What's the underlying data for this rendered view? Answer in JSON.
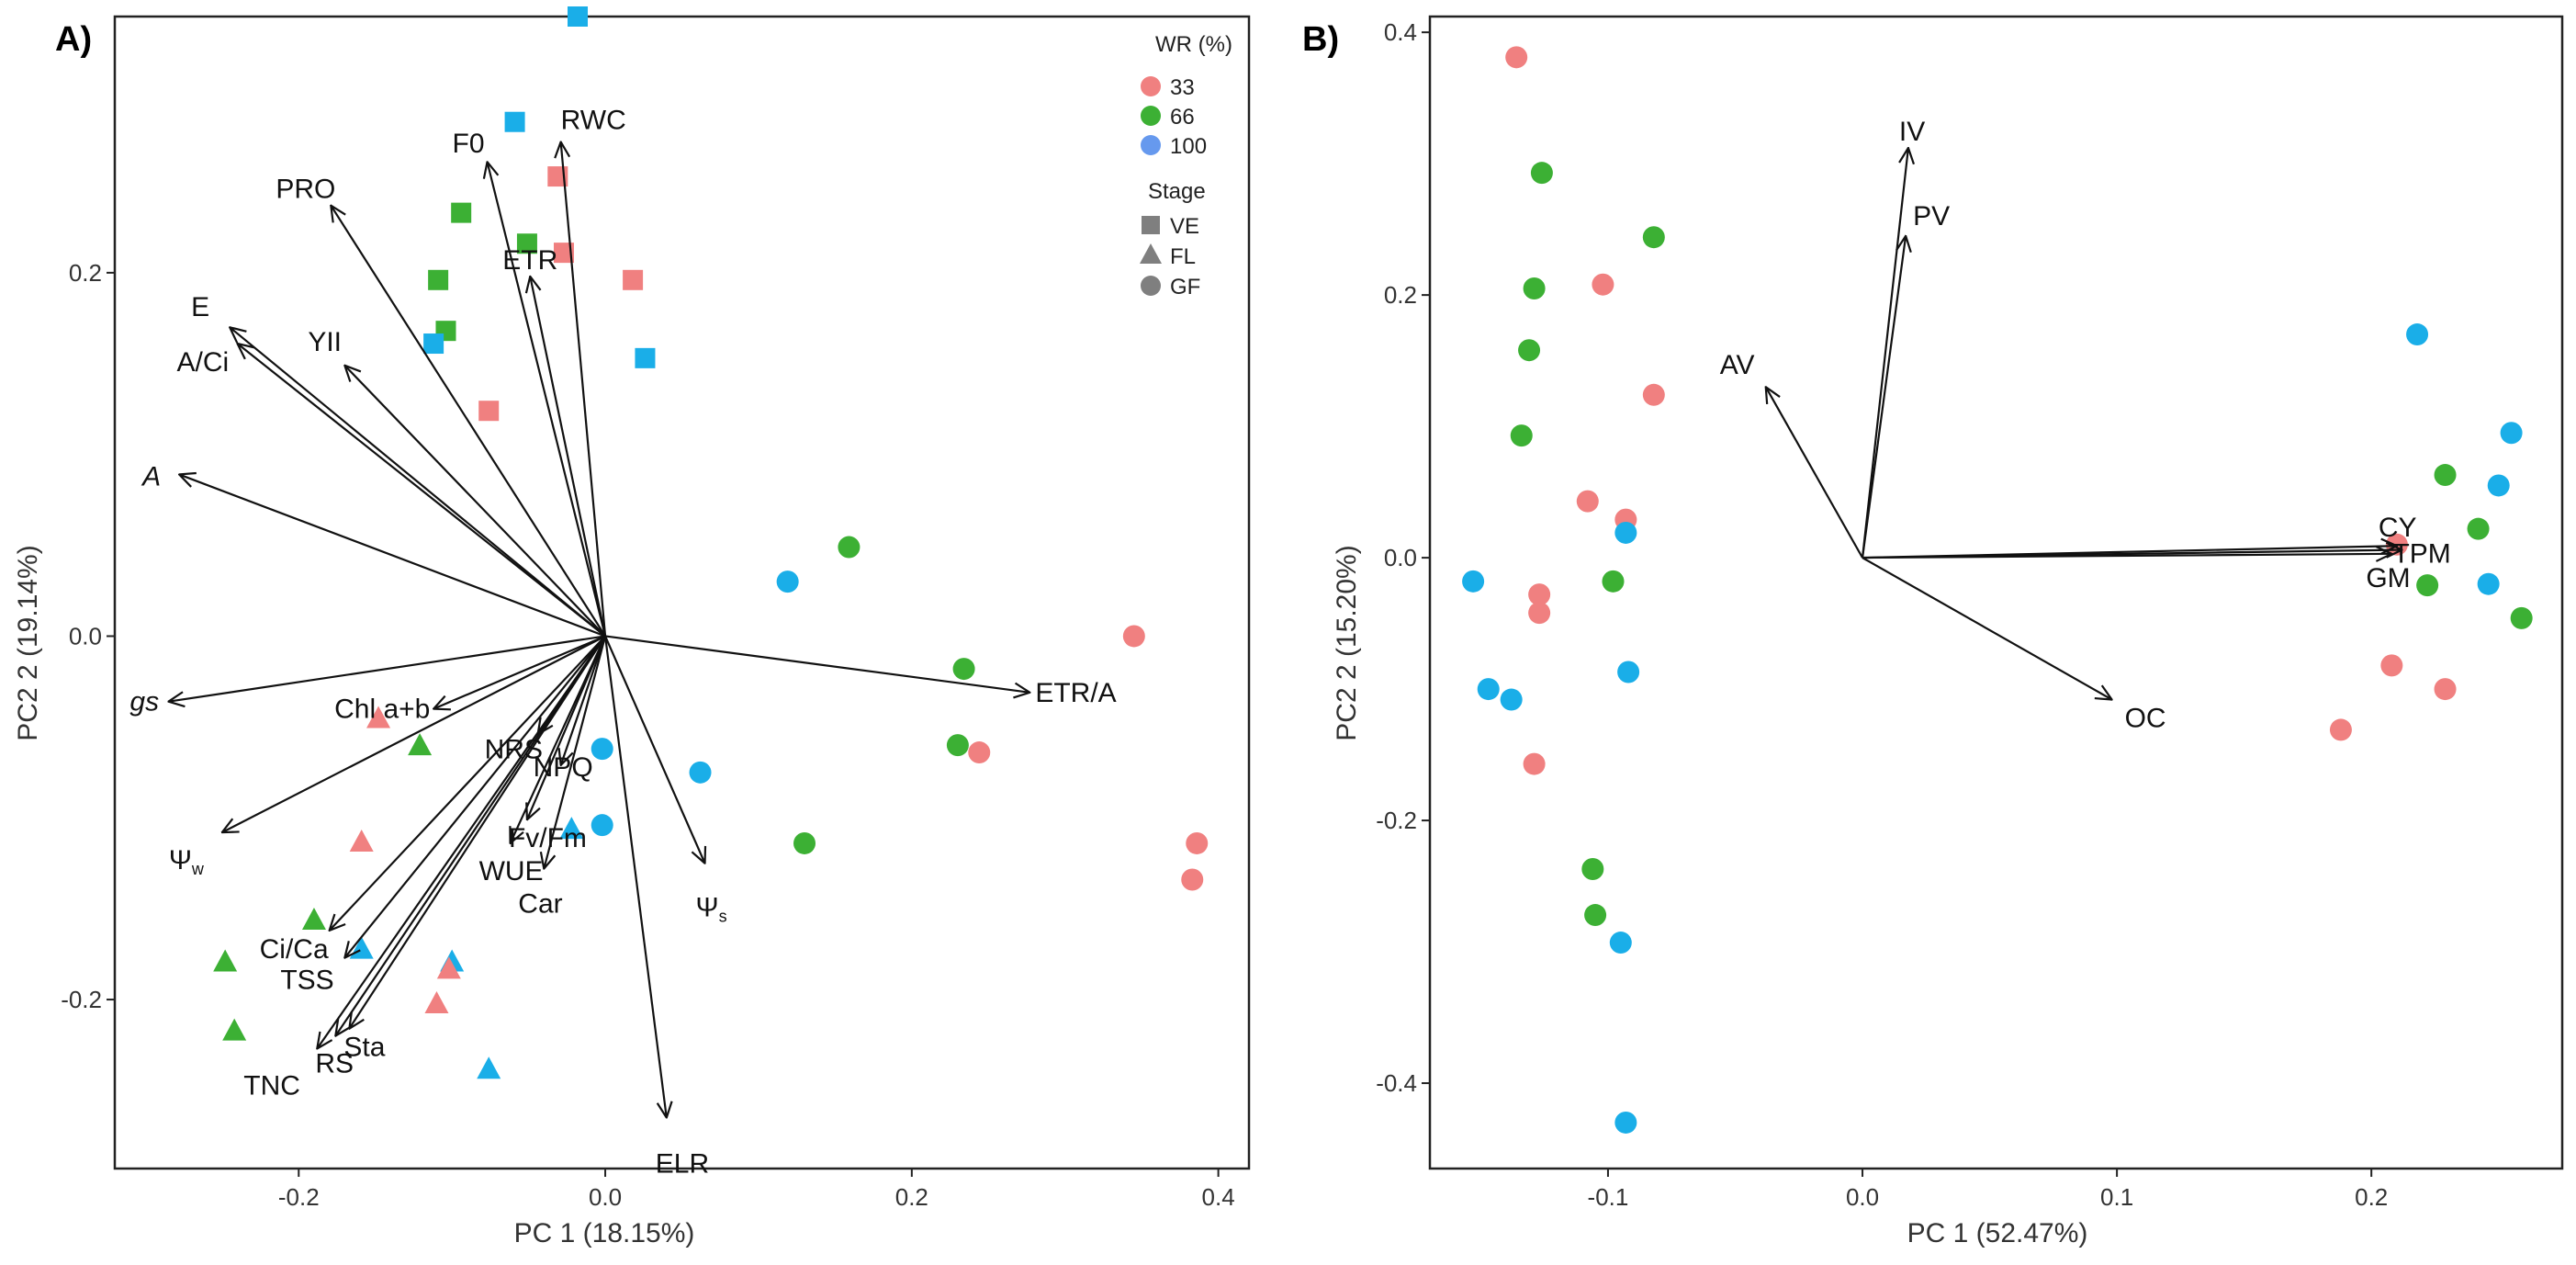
{
  "colors": {
    "wr33": "#f08080",
    "wr66": "#3cb034",
    "wr100": "#1aaee8",
    "legend100": "#6699ee",
    "stage": "#7f7f7f"
  },
  "legend": {
    "wr_title": "WR (%)",
    "wr_items": [
      {
        "label": "33",
        "key": "33"
      },
      {
        "label": "66",
        "key": "66"
      },
      {
        "label": "100",
        "key": "100"
      }
    ],
    "stage_title": "Stage",
    "stage_items": [
      {
        "label": "VE",
        "key": "VE"
      },
      {
        "label": "FL",
        "key": "FL"
      },
      {
        "label": "GF",
        "key": "GF"
      }
    ]
  },
  "chart_data": [
    {
      "panel": "A)",
      "type": "scatter",
      "xlabel": "PC 1 (18.15%)",
      "ylabel": "PC2 2 (19.14%)",
      "xlim": [
        -0.32,
        0.42
      ],
      "ylim": [
        -0.293,
        0.341
      ],
      "xticks": [
        -0.2,
        0.0,
        0.2,
        0.4
      ],
      "xtick_labels": [
        "-0.2",
        "0.0",
        "0.2",
        "0.4"
      ],
      "yticks": [
        -0.2,
        0.0,
        0.2
      ],
      "ytick_labels": [
        "-0.2",
        "0.0",
        "0.2"
      ],
      "loadings": [
        {
          "label": "RWC",
          "x": -0.029,
          "y": 0.272
        },
        {
          "label": "F0",
          "x": -0.077,
          "y": 0.261
        },
        {
          "label": "PRO",
          "x": -0.179,
          "y": 0.237
        },
        {
          "label": "ETR",
          "x": -0.049,
          "y": 0.198
        },
        {
          "label": "YII",
          "x": -0.17,
          "y": 0.149
        },
        {
          "label": "E",
          "x": -0.245,
          "y": 0.17
        },
        {
          "label": "A/Ci",
          "x": -0.24,
          "y": 0.161
        },
        {
          "label": "A",
          "x": -0.278,
          "y": 0.089
        },
        {
          "label": "gs",
          "x": -0.285,
          "y": -0.036
        },
        {
          "label": "Chl a+b",
          "x": -0.112,
          "y": -0.04
        },
        {
          "label": "NRS",
          "x": -0.044,
          "y": -0.054
        },
        {
          "label": "NPQ",
          "x": -0.029,
          "y": -0.071
        },
        {
          "label": "Fv/Fm",
          "x": -0.051,
          "y": -0.101
        },
        {
          "label": "WUE",
          "x": -0.062,
          "y": -0.114
        },
        {
          "label": "Car",
          "x": -0.04,
          "y": -0.128
        },
        {
          "label": "Ψw",
          "x": -0.25,
          "y": -0.108
        },
        {
          "label": "Ci/Ca",
          "x": -0.18,
          "y": -0.162
        },
        {
          "label": "TSS",
          "x": -0.17,
          "y": -0.177
        },
        {
          "label": "TNC",
          "x": -0.188,
          "y": -0.227
        },
        {
          "label": "RS",
          "x": -0.176,
          "y": -0.22
        },
        {
          "label": "Sta",
          "x": -0.167,
          "y": -0.216
        },
        {
          "label": "Ψs",
          "x": 0.065,
          "y": -0.125
        },
        {
          "label": "ELR",
          "x": 0.04,
          "y": -0.265
        },
        {
          "label": "ETR/A",
          "x": 0.277,
          "y": -0.031
        }
      ],
      "points": [
        {
          "x": -0.018,
          "y": 0.341,
          "wr": "100",
          "stage": "VE"
        },
        {
          "x": -0.059,
          "y": 0.283,
          "wr": "100",
          "stage": "VE"
        },
        {
          "x": -0.031,
          "y": 0.253,
          "wr": "33",
          "stage": "VE"
        },
        {
          "x": -0.094,
          "y": 0.233,
          "wr": "66",
          "stage": "VE"
        },
        {
          "x": -0.051,
          "y": 0.216,
          "wr": "66",
          "stage": "VE"
        },
        {
          "x": -0.027,
          "y": 0.211,
          "wr": "33",
          "stage": "VE"
        },
        {
          "x": -0.109,
          "y": 0.196,
          "wr": "66",
          "stage": "VE"
        },
        {
          "x": 0.018,
          "y": 0.196,
          "wr": "33",
          "stage": "VE"
        },
        {
          "x": -0.104,
          "y": 0.168,
          "wr": "66",
          "stage": "VE"
        },
        {
          "x": -0.112,
          "y": 0.161,
          "wr": "100",
          "stage": "VE"
        },
        {
          "x": 0.026,
          "y": 0.153,
          "wr": "100",
          "stage": "VE"
        },
        {
          "x": -0.076,
          "y": 0.124,
          "wr": "33",
          "stage": "VE"
        },
        {
          "x": -0.148,
          "y": -0.045,
          "wr": "33",
          "stage": "FL"
        },
        {
          "x": -0.121,
          "y": -0.06,
          "wr": "66",
          "stage": "FL"
        },
        {
          "x": -0.159,
          "y": -0.113,
          "wr": "33",
          "stage": "FL"
        },
        {
          "x": -0.19,
          "y": -0.156,
          "wr": "66",
          "stage": "FL"
        },
        {
          "x": -0.159,
          "y": -0.172,
          "wr": "100",
          "stage": "FL"
        },
        {
          "x": -0.248,
          "y": -0.179,
          "wr": "66",
          "stage": "FL"
        },
        {
          "x": -0.1,
          "y": -0.179,
          "wr": "100",
          "stage": "FL"
        },
        {
          "x": -0.102,
          "y": -0.183,
          "wr": "33",
          "stage": "FL"
        },
        {
          "x": -0.11,
          "y": -0.202,
          "wr": "33",
          "stage": "FL"
        },
        {
          "x": -0.242,
          "y": -0.217,
          "wr": "66",
          "stage": "FL"
        },
        {
          "x": -0.076,
          "y": -0.238,
          "wr": "100",
          "stage": "FL"
        },
        {
          "x": -0.022,
          "y": -0.106,
          "wr": "100",
          "stage": "FL"
        },
        {
          "x": 0.159,
          "y": 0.049,
          "wr": "66",
          "stage": "GF"
        },
        {
          "x": 0.119,
          "y": 0.03,
          "wr": "100",
          "stage": "GF"
        },
        {
          "x": 0.345,
          "y": 0.0,
          "wr": "33",
          "stage": "GF"
        },
        {
          "x": 0.234,
          "y": -0.018,
          "wr": "66",
          "stage": "GF"
        },
        {
          "x": 0.23,
          "y": -0.06,
          "wr": "66",
          "stage": "GF"
        },
        {
          "x": 0.244,
          "y": -0.064,
          "wr": "33",
          "stage": "GF"
        },
        {
          "x": -0.002,
          "y": -0.062,
          "wr": "100",
          "stage": "GF"
        },
        {
          "x": 0.062,
          "y": -0.075,
          "wr": "100",
          "stage": "GF"
        },
        {
          "x": -0.002,
          "y": -0.104,
          "wr": "100",
          "stage": "GF"
        },
        {
          "x": 0.13,
          "y": -0.114,
          "wr": "66",
          "stage": "GF"
        },
        {
          "x": 0.386,
          "y": -0.114,
          "wr": "33",
          "stage": "GF"
        },
        {
          "x": 0.383,
          "y": -0.134,
          "wr": "33",
          "stage": "GF"
        }
      ]
    },
    {
      "panel": "B)",
      "type": "scatter",
      "xlabel": "PC 1 (52.47%)",
      "ylabel": "PC2 2 (15.20%)",
      "xlim": [
        -0.17,
        0.275
      ],
      "ylim": [
        -0.465,
        0.412
      ],
      "xticks": [
        -0.1,
        0.0,
        0.1,
        0.2
      ],
      "xtick_labels": [
        "-0.1",
        "0.0",
        "0.1",
        "0.2"
      ],
      "yticks": [
        -0.4,
        -0.2,
        0.0,
        0.2,
        0.4
      ],
      "ytick_labels": [
        "-0.4",
        "-0.2",
        "0.0",
        "0.2",
        "0.4"
      ],
      "loadings": [
        {
          "label": "IV",
          "x": 0.018,
          "y": 0.312
        },
        {
          "label": "PV",
          "x": 0.017,
          "y": 0.245
        },
        {
          "label": "AV",
          "x": -0.038,
          "y": 0.13
        },
        {
          "label": "OC",
          "x": 0.098,
          "y": -0.108
        },
        {
          "label": "CY",
          "x": 0.21,
          "y": 0.009
        },
        {
          "label": "TPM",
          "x": 0.212,
          "y": 0.006
        },
        {
          "label": "GM",
          "x": 0.208,
          "y": 0.003
        }
      ],
      "points": [
        {
          "x": -0.136,
          "y": 0.381,
          "wr": "33",
          "stage": "GF"
        },
        {
          "x": -0.126,
          "y": 0.293,
          "wr": "66",
          "stage": "GF"
        },
        {
          "x": -0.082,
          "y": 0.244,
          "wr": "66",
          "stage": "GF"
        },
        {
          "x": -0.102,
          "y": 0.208,
          "wr": "33",
          "stage": "GF"
        },
        {
          "x": -0.129,
          "y": 0.205,
          "wr": "66",
          "stage": "GF"
        },
        {
          "x": -0.131,
          "y": 0.158,
          "wr": "66",
          "stage": "GF"
        },
        {
          "x": -0.082,
          "y": 0.124,
          "wr": "33",
          "stage": "GF"
        },
        {
          "x": -0.134,
          "y": 0.093,
          "wr": "66",
          "stage": "GF"
        },
        {
          "x": -0.108,
          "y": 0.043,
          "wr": "33",
          "stage": "GF"
        },
        {
          "x": -0.093,
          "y": 0.029,
          "wr": "33",
          "stage": "GF"
        },
        {
          "x": -0.093,
          "y": 0.019,
          "wr": "100",
          "stage": "GF"
        },
        {
          "x": -0.098,
          "y": -0.018,
          "wr": "66",
          "stage": "GF"
        },
        {
          "x": -0.153,
          "y": -0.018,
          "wr": "100",
          "stage": "GF"
        },
        {
          "x": -0.127,
          "y": -0.028,
          "wr": "33",
          "stage": "GF"
        },
        {
          "x": -0.127,
          "y": -0.042,
          "wr": "33",
          "stage": "GF"
        },
        {
          "x": -0.092,
          "y": -0.087,
          "wr": "100",
          "stage": "GF"
        },
        {
          "x": -0.147,
          "y": -0.1,
          "wr": "100",
          "stage": "GF"
        },
        {
          "x": -0.138,
          "y": -0.108,
          "wr": "100",
          "stage": "GF"
        },
        {
          "x": -0.129,
          "y": -0.157,
          "wr": "33",
          "stage": "GF"
        },
        {
          "x": -0.106,
          "y": -0.237,
          "wr": "66",
          "stage": "GF"
        },
        {
          "x": -0.105,
          "y": -0.272,
          "wr": "66",
          "stage": "GF"
        },
        {
          "x": -0.095,
          "y": -0.293,
          "wr": "100",
          "stage": "GF"
        },
        {
          "x": -0.093,
          "y": -0.43,
          "wr": "100",
          "stage": "GF"
        },
        {
          "x": 0.218,
          "y": 0.17,
          "wr": "100",
          "stage": "GF"
        },
        {
          "x": 0.255,
          "y": 0.095,
          "wr": "100",
          "stage": "GF"
        },
        {
          "x": 0.229,
          "y": 0.063,
          "wr": "66",
          "stage": "GF"
        },
        {
          "x": 0.25,
          "y": 0.055,
          "wr": "100",
          "stage": "GF"
        },
        {
          "x": 0.242,
          "y": 0.022,
          "wr": "66",
          "stage": "GF"
        },
        {
          "x": 0.21,
          "y": 0.01,
          "wr": "33",
          "stage": "GF"
        },
        {
          "x": 0.222,
          "y": -0.021,
          "wr": "66",
          "stage": "GF"
        },
        {
          "x": 0.246,
          "y": -0.02,
          "wr": "100",
          "stage": "GF"
        },
        {
          "x": 0.259,
          "y": -0.046,
          "wr": "66",
          "stage": "GF"
        },
        {
          "x": 0.208,
          "y": -0.082,
          "wr": "33",
          "stage": "GF"
        },
        {
          "x": 0.229,
          "y": -0.1,
          "wr": "33",
          "stage": "GF"
        },
        {
          "x": 0.188,
          "y": -0.131,
          "wr": "33",
          "stage": "GF"
        }
      ]
    }
  ]
}
